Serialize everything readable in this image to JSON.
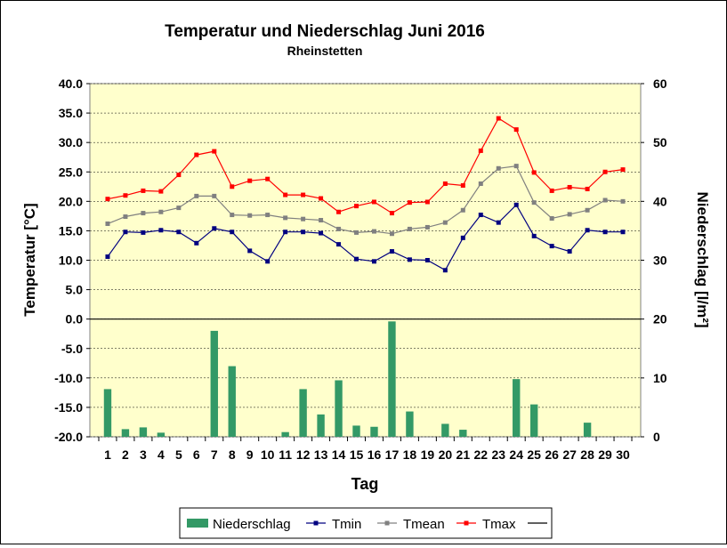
{
  "chart_data": {
    "type": "bar+line",
    "title": "Temperatur und Niederschlag Juni 2016",
    "subtitle": "Rheinstetten",
    "xlabel": "Tag",
    "ylabel_left": "Temperatur [°C]",
    "ylabel_right": "Niederschlag [l/m²]",
    "ylim_left": [
      -20,
      40
    ],
    "ylim_right": [
      0,
      60
    ],
    "left_ticks": [
      "40.0",
      "35.0",
      "30.0",
      "25.0",
      "20.0",
      "15.0",
      "10.0",
      "5.0",
      "0.0",
      "-5.0",
      "-10.0",
      "-15.0",
      "-20.0"
    ],
    "right_ticks": [
      "60",
      "50",
      "40",
      "30",
      "20",
      "10",
      "0"
    ],
    "categories": [
      "1",
      "2",
      "3",
      "4",
      "5",
      "6",
      "7",
      "8",
      "9",
      "10",
      "11",
      "12",
      "13",
      "14",
      "15",
      "16",
      "17",
      "18",
      "19",
      "20",
      "21",
      "22",
      "23",
      "24",
      "25",
      "26",
      "27",
      "28",
      "29",
      "30"
    ],
    "grid": true,
    "legend_position": "bottom",
    "series": [
      {
        "name": "Niederschlag",
        "type": "bar",
        "axis": "right",
        "color": "#339966",
        "values": [
          8.1,
          1.3,
          1.6,
          0.7,
          0,
          0,
          18,
          12,
          0,
          0,
          0.8,
          8.1,
          3.8,
          9.6,
          1.9,
          1.7,
          19.6,
          4.3,
          0,
          2.2,
          1.2,
          0,
          0,
          9.8,
          5.5,
          0,
          0,
          2.4,
          0,
          0
        ]
      },
      {
        "name": "Tmin",
        "type": "line",
        "axis": "left",
        "color": "#000080",
        "values": [
          10.6,
          14.8,
          14.7,
          15.1,
          14.8,
          12.9,
          15.4,
          14.8,
          11.6,
          9.8,
          14.8,
          14.8,
          14.6,
          12.7,
          10.2,
          9.8,
          11.5,
          10.1,
          10.0,
          8.3,
          13.8,
          17.7,
          16.4,
          19.4,
          14.1,
          12.4,
          11.5,
          15.1,
          14.8,
          14.8
        ]
      },
      {
        "name": "Tmean",
        "type": "line",
        "axis": "left",
        "color": "#808080",
        "values": [
          16.2,
          17.4,
          18.0,
          18.2,
          18.9,
          20.9,
          20.9,
          17.7,
          17.6,
          17.7,
          17.2,
          17.0,
          16.8,
          15.3,
          14.7,
          14.9,
          14.5,
          15.3,
          15.6,
          16.4,
          18.5,
          23.0,
          25.6,
          26.0,
          19.8,
          17.1,
          17.8,
          18.5,
          20.2,
          20.0
        ]
      },
      {
        "name": "Tmax",
        "type": "line",
        "axis": "left",
        "color": "#ff0000",
        "values": [
          20.4,
          21.0,
          21.8,
          21.7,
          24.5,
          27.9,
          28.5,
          22.5,
          23.5,
          23.8,
          21.1,
          21.1,
          20.5,
          18.2,
          19.2,
          19.9,
          18.0,
          19.8,
          19.9,
          23.0,
          22.7,
          28.6,
          34.1,
          32.2,
          24.9,
          21.8,
          22.4,
          22.1,
          25.0,
          25.4
        ]
      }
    ],
    "legend_items": [
      {
        "label": "Niederschlag",
        "kind": "bar",
        "color": "#339966"
      },
      {
        "label": "Tmin",
        "kind": "line",
        "color": "#000080"
      },
      {
        "label": "Tmean",
        "kind": "line",
        "color": "#808080"
      },
      {
        "label": "Tmax",
        "kind": "line",
        "color": "#ff0000"
      },
      {
        "label": "",
        "kind": "line",
        "color": "#000000"
      }
    ],
    "colors": {
      "plot_background": "#ffffcc",
      "zero_line": "#000000",
      "grid": "#000000"
    }
  }
}
